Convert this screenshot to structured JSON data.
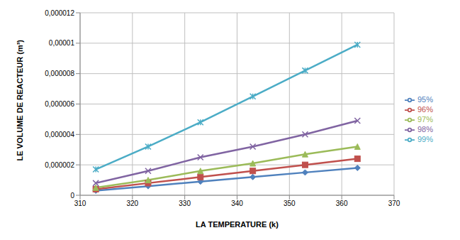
{
  "chart_data": {
    "type": "line",
    "x_label": "LA TEMPERATURE (k)",
    "y_label": "LE VOLUME DE REACTEUR (m³)",
    "x": [
      313,
      323,
      333,
      343,
      353,
      363
    ],
    "xlim": [
      310,
      370
    ],
    "xticks": [
      310,
      320,
      330,
      340,
      350,
      360,
      370
    ],
    "ylim": [
      0,
      1.2e-05
    ],
    "yticks": [
      0,
      {
        "value": 2e-06,
        "label": "0,000002"
      },
      {
        "value": 4e-06,
        "label": "0,000004"
      },
      {
        "value": 6e-06,
        "label": "0,000006"
      },
      {
        "value": 8e-06,
        "label": "0,000008"
      },
      {
        "value": 1e-05,
        "label": "0,00001"
      },
      {
        "value": 1.2e-05,
        "label": "0,000012"
      }
    ],
    "grid": true,
    "legend": "right",
    "series": [
      {
        "name": "95%",
        "color": "#4F81BD",
        "marker": "diamond",
        "values": [
          3e-07,
          6e-07,
          9e-07,
          1.2e-06,
          1.5e-06,
          1.8e-06
        ]
      },
      {
        "name": "96%",
        "color": "#C0504D",
        "marker": "square",
        "values": [
          4e-07,
          8e-07,
          1.2e-06,
          1.6e-06,
          2e-06,
          2.4e-06
        ]
      },
      {
        "name": "97%",
        "color": "#9BBB59",
        "marker": "triangle",
        "values": [
          5e-07,
          1e-06,
          1.6e-06,
          2.1e-06,
          2.7e-06,
          3.2e-06
        ]
      },
      {
        "name": "98%",
        "color": "#8064A2",
        "marker": "x",
        "values": [
          8e-07,
          1.6e-06,
          2.5e-06,
          3.2e-06,
          4e-06,
          4.9e-06
        ]
      },
      {
        "name": "99%",
        "color": "#4BACC6",
        "marker": "star",
        "values": [
          1.7e-06,
          3.2e-06,
          4.8e-06,
          6.5e-06,
          8.2e-06,
          9.9e-06
        ]
      }
    ]
  }
}
